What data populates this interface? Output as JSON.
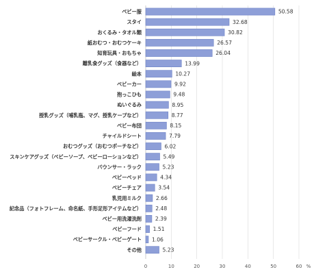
{
  "chart_data": {
    "type": "bar",
    "orientation": "horizontal",
    "categories": [
      "ベビー服",
      "スタイ",
      "おくるみ・タオル類",
      "紙おむつ・おむつケーキ",
      "知育玩具・おもちゃ",
      "離乳食グッズ（食器など）",
      "絵本",
      "ベビーカー",
      "抱っこひも",
      "ぬいぐるみ",
      "授乳グッズ（哺乳瓶、マグ、授乳ケープなど）",
      "ベビー布団",
      "チャイルドシート",
      "おむつグッズ（おむつポーチなど）",
      "スキンケアグッズ（ベビーソープ、ベビーローションなど）",
      "バウンサー・ラック",
      "ベビーベッド",
      "ベビーチェア",
      "乳児用ミルク",
      "記念品（フォトフレーム、命名紙、手形足形アイテムなど）",
      "ベビー用洗濯洗剤",
      "ベビーフード",
      "ベビーサークル・ベビーゲート",
      "その他"
    ],
    "values": [
      50.58,
      32.68,
      30.82,
      26.57,
      26.04,
      13.99,
      10.27,
      9.92,
      9.48,
      8.95,
      8.77,
      8.15,
      7.79,
      6.02,
      5.49,
      5.23,
      4.34,
      3.54,
      2.66,
      2.48,
      2.39,
      1.51,
      1.06,
      5.23
    ],
    "value_labels": [
      "50.58",
      "32.68",
      "30.82",
      "26.57",
      "26.04",
      "13.99",
      "10.27",
      "9.92",
      "9.48",
      "8.95",
      "8.77",
      "8.15",
      "7.79",
      "6.02",
      "5.49",
      "5.23",
      "4.34",
      "3.54",
      "2.66",
      "2.48",
      "2.39",
      "1.51",
      "1.06",
      "5.23"
    ],
    "xlim": [
      0,
      60
    ],
    "xticks": [
      "0",
      "10",
      "20",
      "30",
      "40",
      "50",
      "60"
    ],
    "x_unit": "%",
    "bar_color": "#8e9fd8",
    "grid": true,
    "legend": "none"
  }
}
